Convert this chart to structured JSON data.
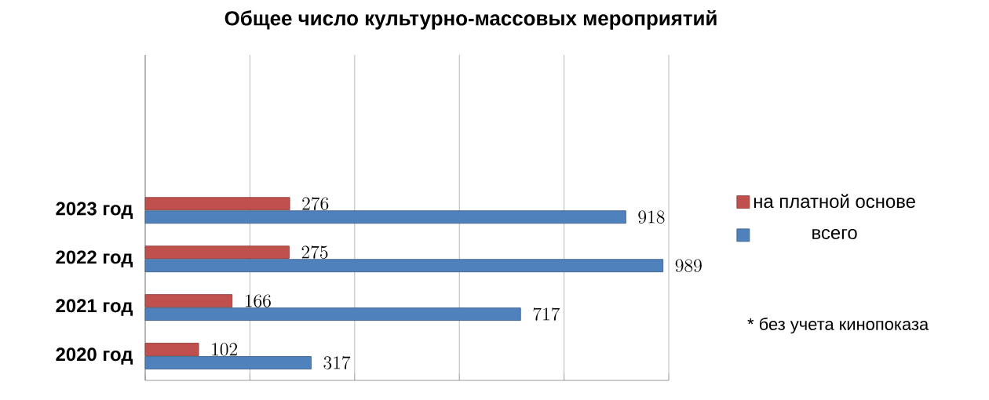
{
  "chart_data": {
    "type": "bar",
    "orientation": "horizontal",
    "title": "Общее число культурно-массовых мероприятий",
    "categories": [
      "2023 год",
      "2022 год",
      "2021 год",
      "2020 год"
    ],
    "series": [
      {
        "name": "на платной основе",
        "color": "#c0504d",
        "values": [
          276,
          275,
          166,
          102
        ]
      },
      {
        "name": "всего",
        "color": "#4f81bd",
        "values": [
          918,
          989,
          717,
          317
        ]
      }
    ],
    "xlim": [
      0,
      1000
    ],
    "xticks": [
      0,
      200,
      400,
      600,
      800,
      1000
    ],
    "grid": "x",
    "tick_labels": "y",
    "data_labels": true,
    "legend": "right",
    "annotations": [
      "* без учета кинопоказа"
    ]
  }
}
